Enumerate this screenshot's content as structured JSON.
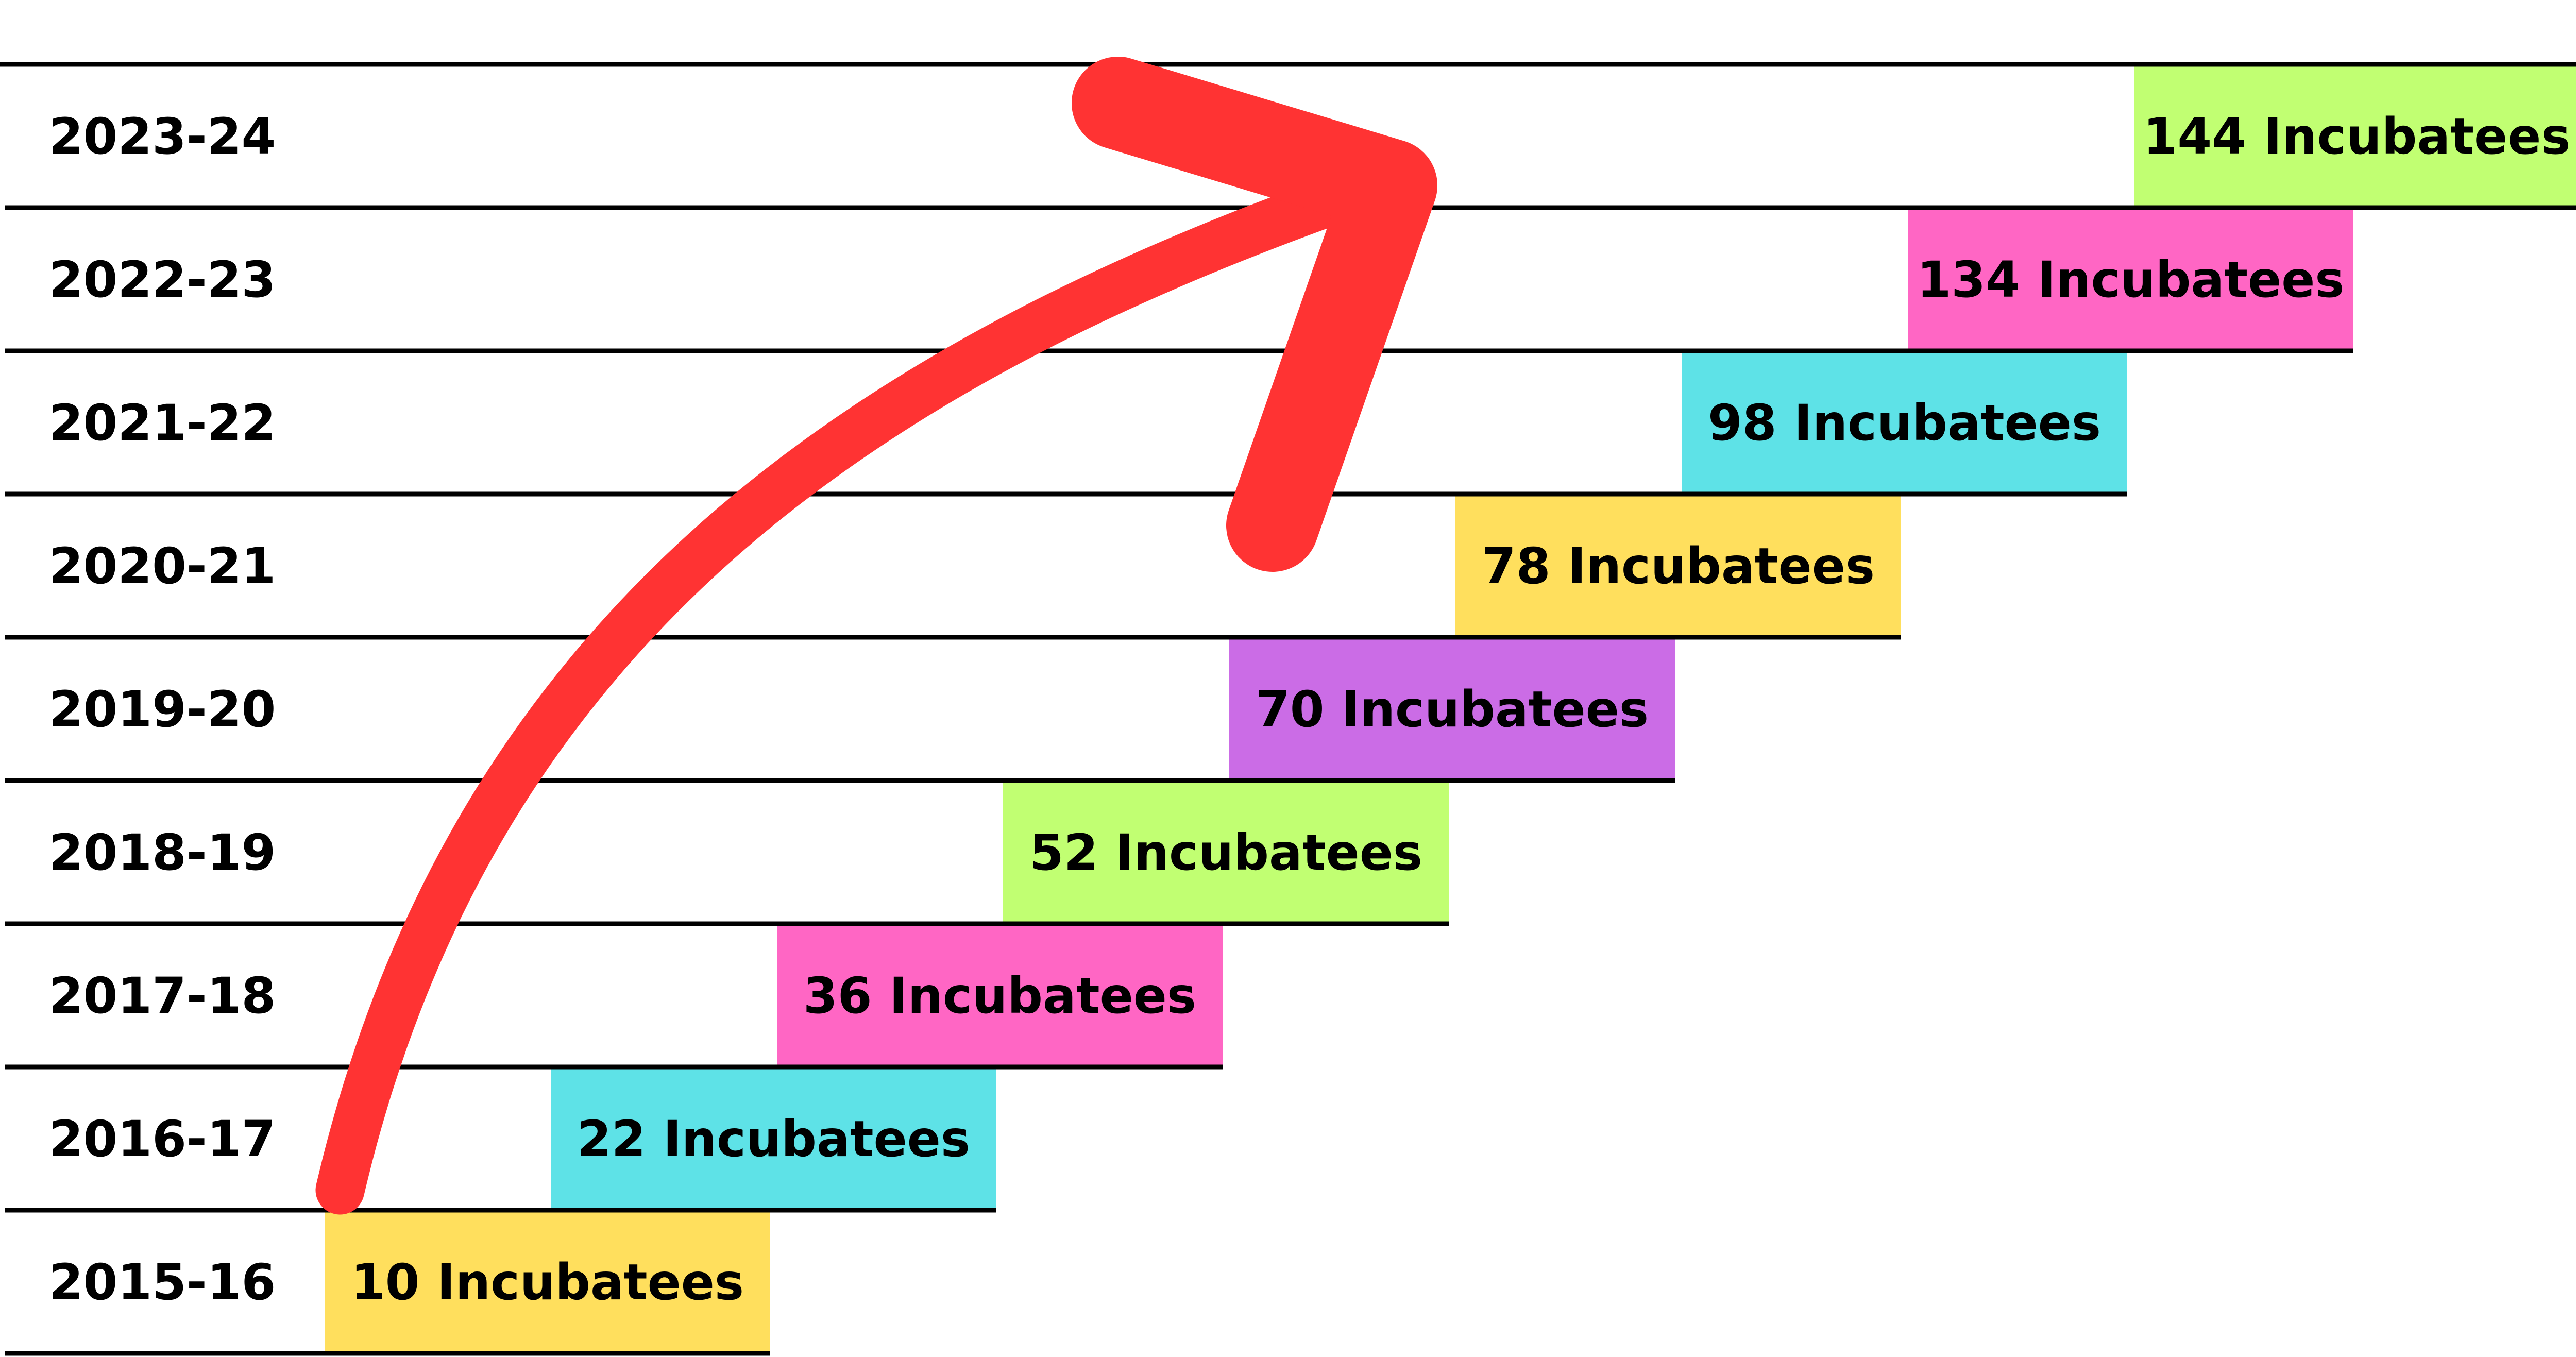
{
  "chart_data": {
    "type": "bar",
    "title": "",
    "xlabel": "",
    "ylabel": "",
    "unit_label": "Incubatees",
    "categories": [
      "2015-16",
      "2016-17",
      "2017-18",
      "2018-19",
      "2019-20",
      "2020-21",
      "2021-22",
      "2022-23",
      "2023-24"
    ],
    "values": [
      10,
      22,
      36,
      52,
      70,
      78,
      98,
      134,
      144
    ],
    "bar_labels": [
      "10 Incubatees",
      "22 Incubatees",
      "36 Incubatees",
      "52 Incubatees",
      "70 Incubatees",
      "78 Incubatees",
      "98 Incubatees",
      "134 Incubatees",
      "144 Incubatees"
    ],
    "bar_colors": [
      "#ffdf5d",
      "#5ee2e7",
      "#ff66c4",
      "#c1ff72",
      "#cb6ce6",
      "#ffdf5d",
      "#5ee2e7",
      "#ff66c4",
      "#c1ff72"
    ],
    "arrow_color": "#ff3333",
    "grid": true,
    "legend": "none"
  }
}
